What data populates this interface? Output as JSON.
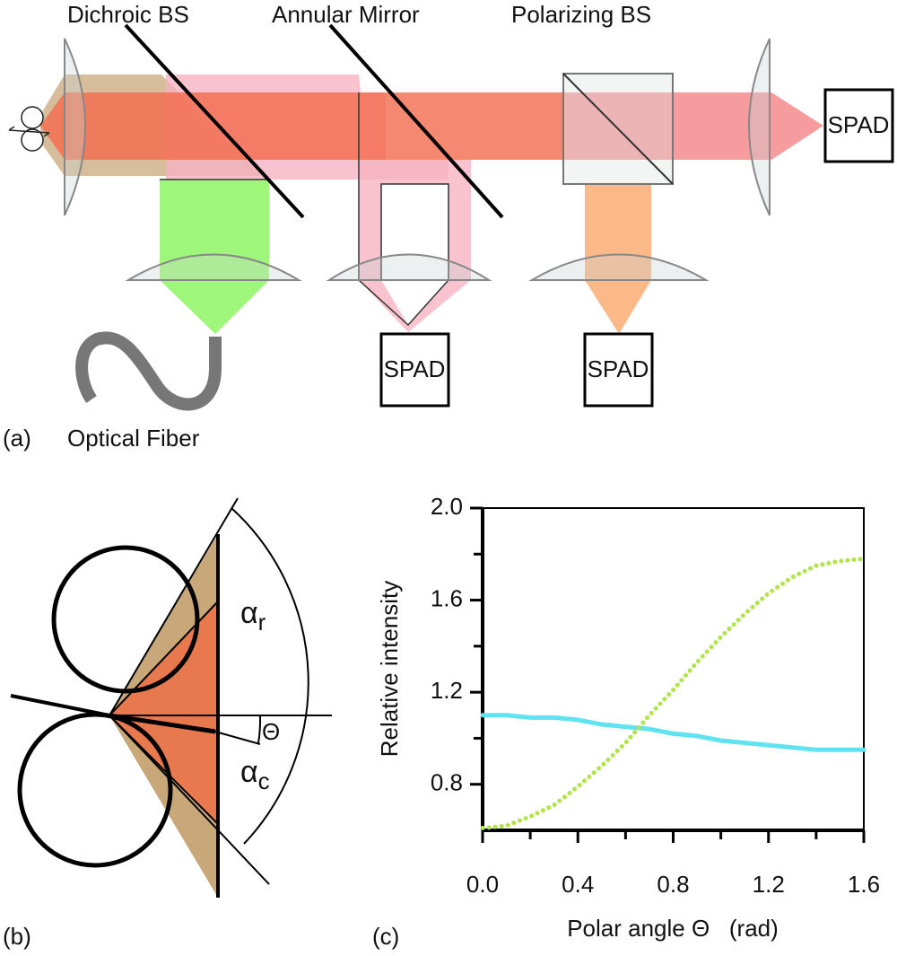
{
  "panel_a": {
    "label": "(a)",
    "components": [
      "Dichroic BS",
      "Annular Mirror",
      "Polarizing BS"
    ],
    "detectors": [
      "SPAD",
      "SPAD",
      "SPAD"
    ],
    "fiber": "Optical Fiber"
  },
  "panel_b": {
    "label": "(b)",
    "alpha_r": {
      "symbol": "α",
      "sub": "r"
    },
    "theta": "Θ",
    "alpha_c": {
      "symbol": "α",
      "sub": "c"
    }
  },
  "panel_c": {
    "label": "(c)"
  },
  "chart_data": {
    "type": "line",
    "xlabel": "Polar angle Θ   (rad)",
    "ylabel": "Relative intensity",
    "x": [
      0,
      0.1,
      0.2,
      0.3,
      0.4,
      0.5,
      0.6,
      0.7,
      0.8,
      0.9,
      1.0,
      1.1,
      1.2,
      1.3,
      1.4,
      1.5,
      1.6
    ],
    "series": [
      {
        "color": "#5fe3f0",
        "style": "solid",
        "values": [
          1.1,
          1.1,
          1.09,
          1.09,
          1.08,
          1.06,
          1.05,
          1.04,
          1.02,
          1.01,
          0.99,
          0.98,
          0.97,
          0.96,
          0.95,
          0.95,
          0.95
        ]
      },
      {
        "color": "#b2e44c",
        "style": "dotted",
        "values": [
          0.61,
          0.62,
          0.66,
          0.71,
          0.79,
          0.88,
          0.98,
          1.1,
          1.21,
          1.33,
          1.44,
          1.54,
          1.63,
          1.7,
          1.75,
          1.77,
          1.78
        ]
      }
    ],
    "xlim": [
      0,
      1.6
    ],
    "ylim": [
      0.6,
      2.0
    ],
    "xticks": [
      {
        "value": 0,
        "label": "0.0"
      },
      0.4,
      0.8,
      1.2,
      1.6
    ],
    "yticks": [
      0.8,
      1.2,
      1.6,
      {
        "value": 2,
        "label": "2.0"
      }
    ],
    "minor_xticks": [
      0.2,
      0.6,
      1.0,
      1.4
    ],
    "minor_yticks": [
      1.0,
      1.4,
      1.8
    ]
  }
}
